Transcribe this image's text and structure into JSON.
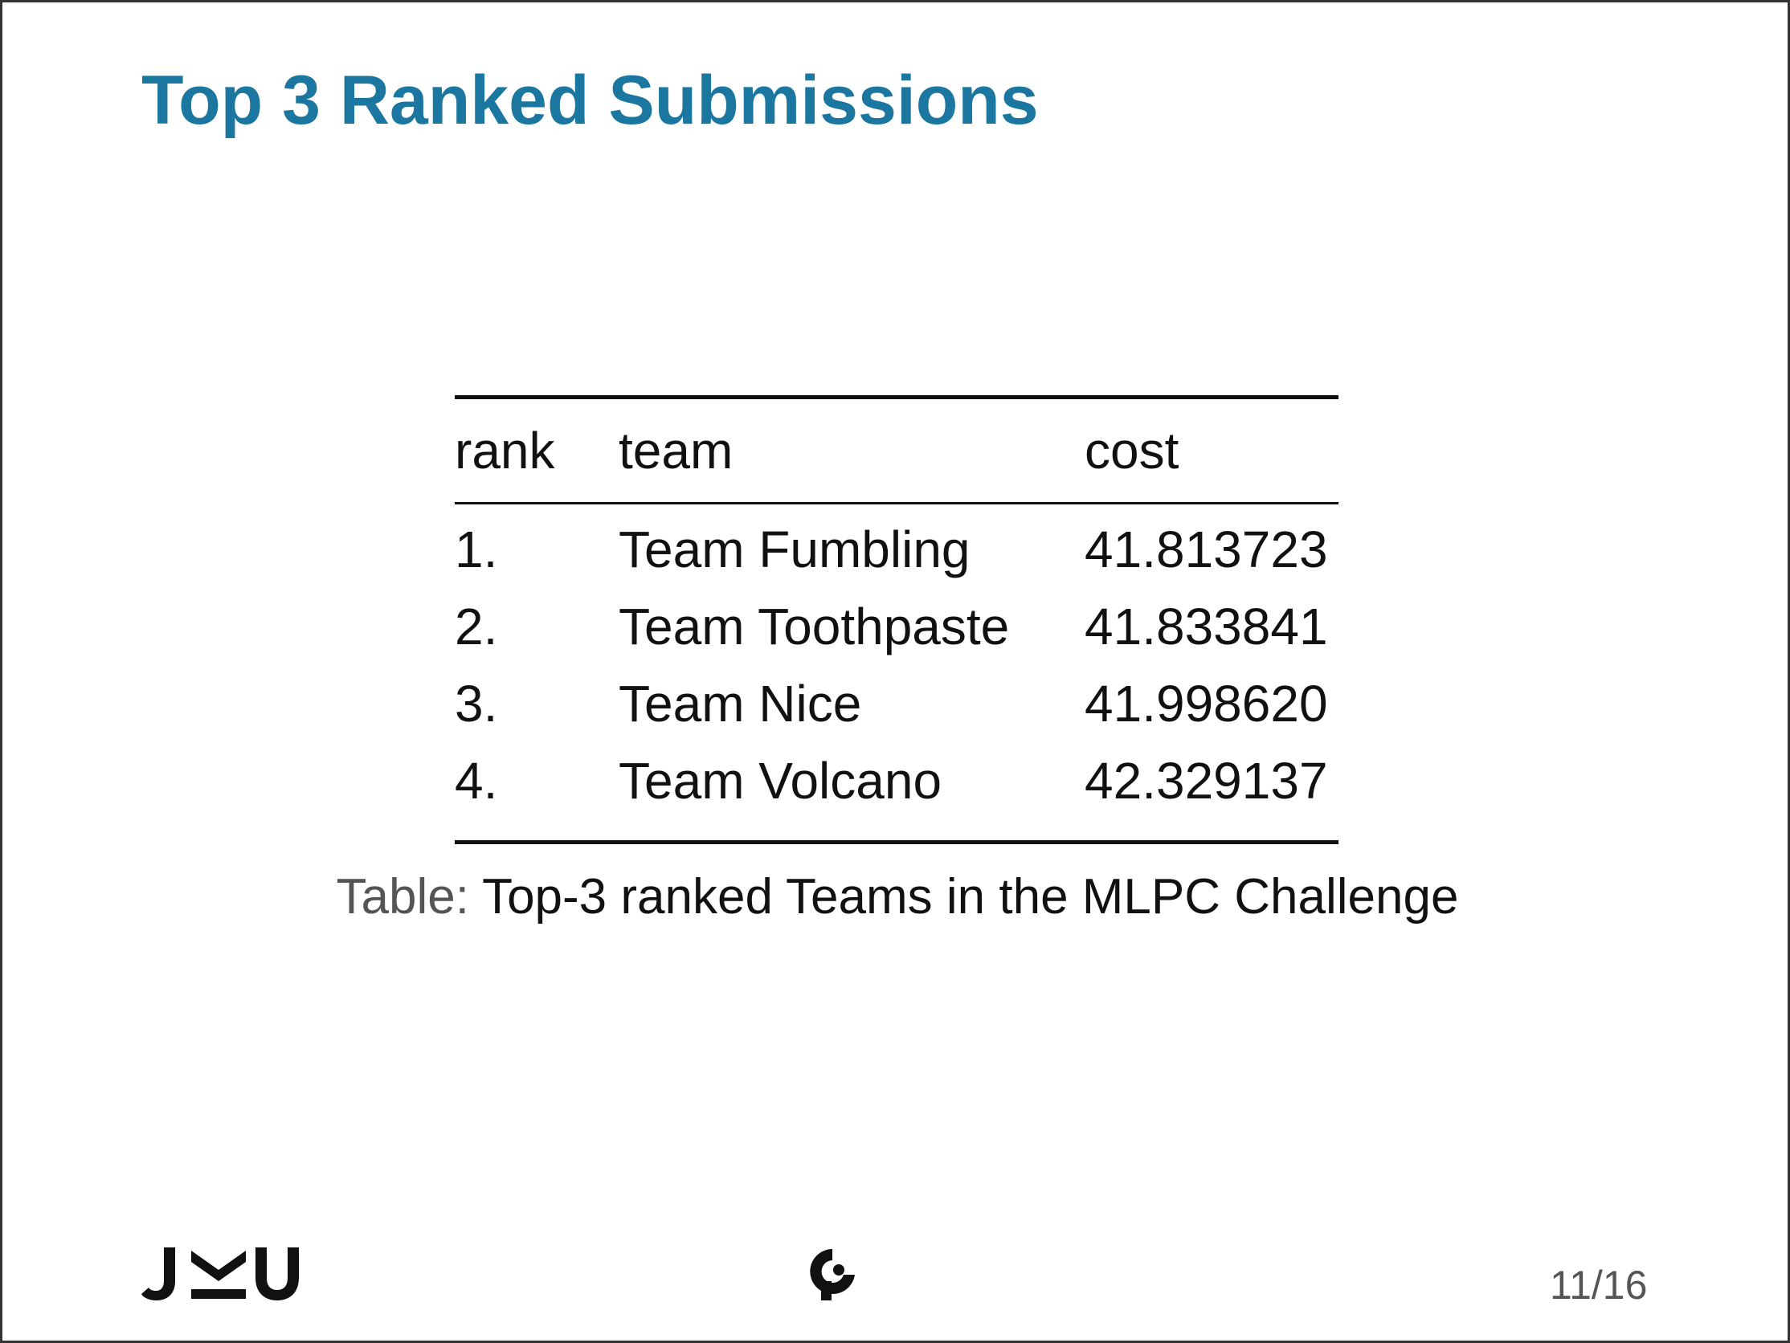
{
  "slide": {
    "title": "Top 3 Ranked Submissions",
    "page_number": "11/16",
    "logo_text": "JKU",
    "accent_color": "#1b77a0"
  },
  "table": {
    "headers": {
      "rank": "rank",
      "team": "team",
      "cost": "cost"
    },
    "rows": [
      {
        "rank": "1.",
        "team": "Team Fumbling",
        "cost": "41.813723"
      },
      {
        "rank": "2.",
        "team": "Team Toothpaste",
        "cost": "41.833841"
      },
      {
        "rank": "3.",
        "team": "Team Nice",
        "cost": "41.998620"
      },
      {
        "rank": "4.",
        "team": "Team Volcano",
        "cost": "42.329137"
      }
    ],
    "caption_prefix": "Table:",
    "caption_text": "Top-3 ranked Teams in the MLPC Challenge"
  },
  "icons": {
    "left_logo": "jku-logo-icon",
    "center_logo": "institute-logo-icon"
  }
}
